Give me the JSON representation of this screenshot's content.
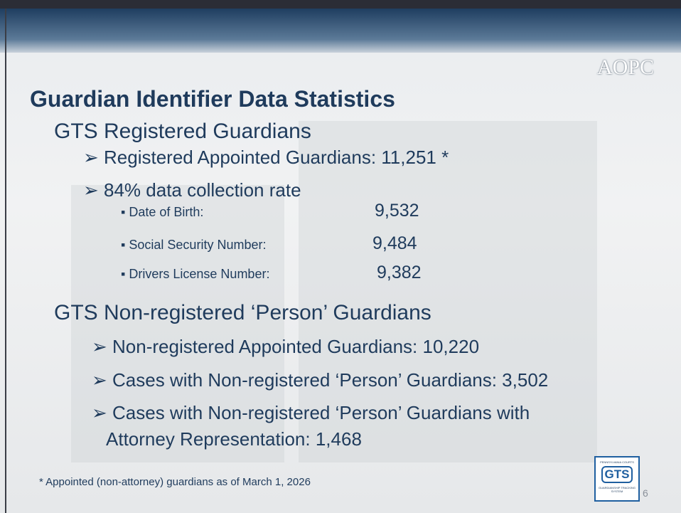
{
  "header": {
    "logo": "AOPC"
  },
  "title": "Guardian Identifier Data Statistics",
  "sections": [
    {
      "heading": "GTS Registered Guardians",
      "items": [
        {
          "text": "Registered Appointed Guardians: 11,251 *"
        },
        {
          "text": "84% data collection rate",
          "subitems": [
            {
              "label": "Date of Birth:",
              "value": "9,532"
            },
            {
              "label": "Social Security Number:",
              "value": "9,484"
            },
            {
              "label": "Drivers License Number:",
              "value": "9,382"
            }
          ]
        }
      ]
    },
    {
      "heading": "GTS Non-registered ‘Person’ Guardians",
      "items": [
        {
          "text": "Non-registered Appointed Guardians: 10,220"
        },
        {
          "text": "Cases with Non-registered ‘Person’ Guardians: 3,502"
        },
        {
          "lines": [
            "Cases with Non-registered ‘Person’ Guardians with",
            "Attorney Representation:  1,468"
          ]
        }
      ]
    }
  ],
  "footnote": "* Appointed (non-attorney) guardians as of March 1, 2026",
  "badge": {
    "top": "PENNSYLVANIA COURTS",
    "mark": "GTS",
    "bottom": "GUARDIANSHIP TRACKING SYSTEM"
  },
  "page_number": "6"
}
